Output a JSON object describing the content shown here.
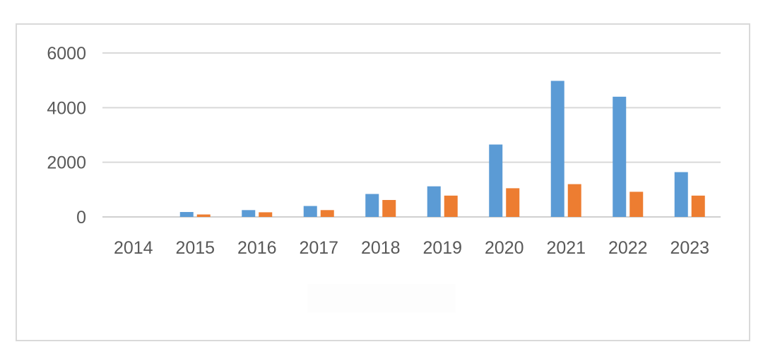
{
  "chart_data": {
    "type": "bar",
    "categories": [
      "2014",
      "2015",
      "2016",
      "2017",
      "2018",
      "2019",
      "2020",
      "2021",
      "2022",
      "2023"
    ],
    "series": [
      {
        "values": [
          0,
          180,
          250,
          400,
          840,
          1120,
          2650,
          4980,
          4400,
          1640
        ],
        "color": "#5b9bd5"
      },
      {
        "values": [
          0,
          90,
          170,
          250,
          620,
          780,
          1050,
          1200,
          920,
          780
        ],
        "color": "#ed7d31"
      }
    ],
    "title": "",
    "xlabel": "",
    "ylabel": "",
    "ylim": [
      0,
      6000
    ],
    "yticks": [
      "0",
      "2000",
      "4000",
      "6000"
    ],
    "grid": true,
    "legend": false
  }
}
